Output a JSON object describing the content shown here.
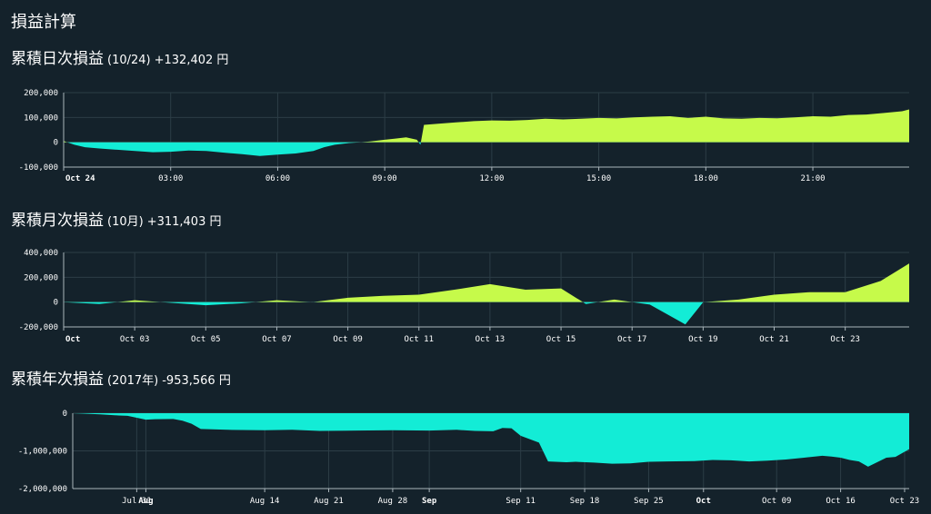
{
  "page_title": "損益計算",
  "colors": {
    "background": "#14222b",
    "positive": "#c6fa4a",
    "negative": "#13ecd6",
    "grid": "#2c3d46",
    "axis": "#aab5bb"
  },
  "chart_data": [
    {
      "type": "area",
      "title": "累積日次損益",
      "subtitle": "(10/24)",
      "value_label": "+132,402 円",
      "ylim": [
        -100000,
        200000
      ],
      "y_ticks": [
        "200,000",
        "100,000",
        "0",
        "-100,000"
      ],
      "x_range": [
        0,
        23.7
      ],
      "x_ticks": [
        [
          "Oct 24",
          true
        ],
        [
          "03:00",
          false
        ],
        [
          "06:00",
          false
        ],
        [
          "09:00",
          false
        ],
        [
          "12:00",
          false
        ],
        [
          "15:00",
          false
        ],
        [
          "18:00",
          false
        ],
        [
          "21:00",
          false
        ]
      ],
      "x": [
        0,
        0.3,
        0.6,
        1,
        1.5,
        2,
        2.5,
        3,
        3.5,
        4,
        4.5,
        5,
        5.5,
        6,
        6.5,
        7,
        7.3,
        7.6,
        8,
        8.3,
        8.6,
        9,
        9.3,
        9.6,
        9.9,
        10,
        10.1,
        10.5,
        11,
        11.5,
        12,
        12.5,
        13,
        13.5,
        14,
        14.5,
        15,
        15.5,
        16,
        16.5,
        17,
        17.5,
        18,
        18.5,
        19,
        19.5,
        20,
        20.5,
        21,
        21.5,
        22,
        22.5,
        23,
        23.5,
        23.7
      ],
      "y": [
        5000,
        -10000,
        -20000,
        -25000,
        -30000,
        -35000,
        -40000,
        -38000,
        -33000,
        -35000,
        -42000,
        -48000,
        -55000,
        -50000,
        -45000,
        -35000,
        -20000,
        -10000,
        -3000,
        0,
        3000,
        10000,
        15000,
        20000,
        10000,
        -10000,
        70000,
        75000,
        80000,
        85000,
        88000,
        87000,
        90000,
        95000,
        92000,
        95000,
        98000,
        96000,
        100000,
        103000,
        105000,
        98000,
        103000,
        96000,
        95000,
        98000,
        97000,
        100000,
        105000,
        103000,
        110000,
        112000,
        118000,
        125000,
        132402
      ]
    },
    {
      "type": "area",
      "title": "累積月次損益",
      "subtitle": "(10月)",
      "value_label": "+311,403 円",
      "ylim": [
        -200000,
        400000
      ],
      "y_ticks": [
        "400,000",
        "200,000",
        "0",
        "-200,000"
      ],
      "x_range": [
        1,
        24.8
      ],
      "x_ticks": [
        [
          "Oct",
          true
        ],
        [
          "Oct 03",
          false
        ],
        [
          "Oct 05",
          false
        ],
        [
          "Oct 07",
          false
        ],
        [
          "Oct 09",
          false
        ],
        [
          "Oct 11",
          false
        ],
        [
          "Oct 13",
          false
        ],
        [
          "Oct 15",
          false
        ],
        [
          "Oct 17",
          false
        ],
        [
          "Oct 19",
          false
        ],
        [
          "Oct 21",
          false
        ],
        [
          "Oct 23",
          false
        ]
      ],
      "x": [
        1,
        2,
        3,
        4,
        5,
        6,
        7,
        8,
        9,
        10,
        11,
        12,
        13,
        14,
        15,
        15.7,
        16.5,
        17.5,
        18.5,
        19,
        20,
        21,
        22,
        23,
        24,
        24.8
      ],
      "y": [
        0,
        -15000,
        15000,
        -5000,
        -25000,
        -10000,
        15000,
        0,
        35000,
        50000,
        60000,
        100000,
        145000,
        100000,
        110000,
        -15000,
        20000,
        -20000,
        -180000,
        0,
        20000,
        60000,
        80000,
        80000,
        170000,
        311403
      ]
    },
    {
      "type": "area",
      "title": "累積年次損益",
      "subtitle": "(2017年)",
      "value_label": "-953,566 円",
      "ylim": [
        -2000000,
        0
      ],
      "y_ticks": [
        "0",
        "-1,000,000",
        "-2,000,000"
      ],
      "x_range": [
        205,
        296.5
      ],
      "x_ticks": [
        [
          "Jul 31",
          false
        ],
        [
          "Aug",
          true
        ],
        [
          "Aug 14",
          false
        ],
        [
          "Aug 21",
          false
        ],
        [
          "Aug 28",
          false
        ],
        [
          "Sep",
          true
        ],
        [
          "Sep 11",
          false
        ],
        [
          "Sep 18",
          false
        ],
        [
          "Sep 25",
          false
        ],
        [
          "Oct",
          true
        ],
        [
          "Oct 09",
          false
        ],
        [
          "Oct 16",
          false
        ],
        [
          "Oct 23",
          false
        ]
      ],
      "x_tick_days": [
        212,
        213,
        226,
        233,
        240,
        244,
        254,
        261,
        268,
        274,
        282,
        289,
        296
      ],
      "x": [
        205,
        206,
        208,
        210,
        211,
        213,
        214,
        216,
        217,
        218,
        219,
        222,
        226,
        229,
        232,
        236,
        240,
        244,
        247,
        249,
        251,
        252,
        253,
        254,
        256,
        257,
        259,
        260,
        262,
        264,
        266,
        268,
        270,
        273,
        275,
        277,
        279,
        281,
        283,
        285,
        287,
        288,
        289,
        290,
        291,
        292,
        294,
        295,
        296.5
      ],
      "y": [
        0,
        -10000,
        -30000,
        -60000,
        -70000,
        -170000,
        -160000,
        -155000,
        -200000,
        -280000,
        -420000,
        -440000,
        -450000,
        -440000,
        -470000,
        -460000,
        -450000,
        -460000,
        -440000,
        -470000,
        -480000,
        -390000,
        -400000,
        -600000,
        -780000,
        -1280000,
        -1300000,
        -1290000,
        -1310000,
        -1340000,
        -1330000,
        -1290000,
        -1280000,
        -1270000,
        -1240000,
        -1250000,
        -1280000,
        -1260000,
        -1230000,
        -1180000,
        -1130000,
        -1150000,
        -1180000,
        -1240000,
        -1280000,
        -1420000,
        -1180000,
        -1160000,
        -953566
      ]
    }
  ]
}
